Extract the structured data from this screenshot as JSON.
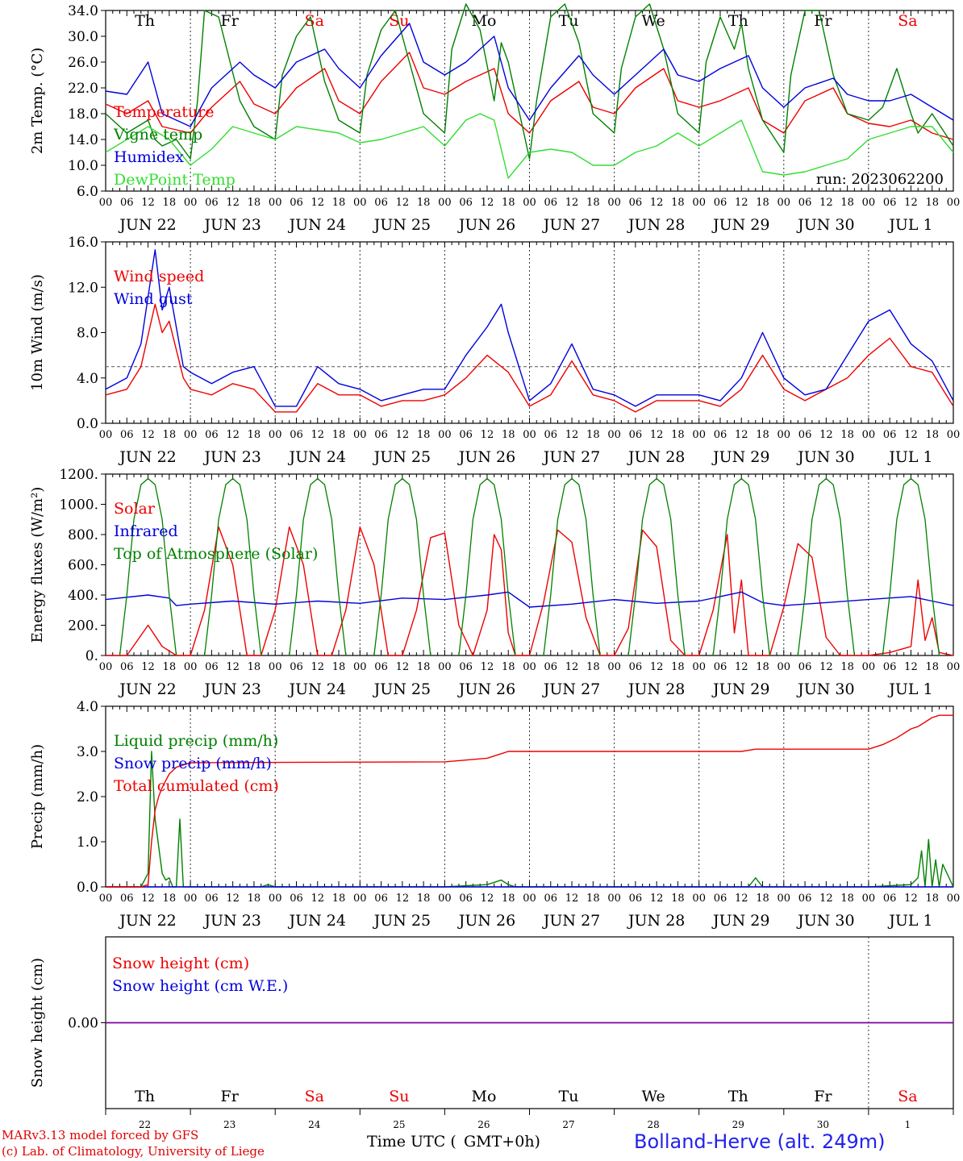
{
  "footer": {
    "credit_line_1": "MARv3.13 model forced by GFS",
    "credit_line_2": "(c) Lab. of Climatology, University of Liege",
    "station": "Bolland-Herve (alt. 249m)",
    "time_axis_label": "Time UTC (",
    "time_zone": "GMT+0h)"
  },
  "colors": {
    "red": "#ee0000",
    "blue": "#0000dd",
    "dark_green": "#008000",
    "light_green": "#33dd33",
    "purple": "#8000a0",
    "weekend": "#ee0000",
    "weekday": "#000000"
  },
  "time_axis": {
    "hour_ticks": [
      "00",
      "06",
      "12",
      "18"
    ],
    "dates": [
      "JUN 22",
      "JUN 23",
      "JUN 24",
      "JUN 25",
      "JUN 26",
      "JUN 27",
      "JUN 28",
      "JUN 29",
      "JUN 30",
      "JUL  1"
    ],
    "day_names": [
      "Th",
      "Fr",
      "Sa",
      "Su",
      "Mo",
      "Tu",
      "We",
      "Th",
      "Fr",
      "Sa"
    ],
    "weekend_days": [
      2,
      3,
      9
    ],
    "day_numbers": [
      "22",
      "23",
      "24",
      "25",
      "26",
      "27",
      "28",
      "29",
      "30",
      "1"
    ]
  },
  "chart_data": [
    {
      "type": "line",
      "ylabel": "2m Temp. (°C)",
      "ylim": [
        6.0,
        34.0
      ],
      "y_ticks": [
        "6.0",
        "10.0",
        "14.0",
        "18.0",
        "22.0",
        "26.0",
        "30.0",
        "34.0"
      ],
      "annotation": "run: 2023062200",
      "x_unit": "hours since JUN 22 00 UTC",
      "series": [
        {
          "name": "Temperature",
          "color": "#ee0000",
          "x": [
            0,
            6,
            12,
            16,
            24,
            30,
            38,
            42,
            48,
            54,
            62,
            66,
            72,
            78,
            86,
            90,
            96,
            102,
            110,
            114,
            120,
            126,
            134,
            138,
            144,
            150,
            158,
            162,
            168,
            174,
            182,
            186,
            192,
            198,
            206,
            210,
            216,
            222,
            228,
            234,
            240
          ],
          "y": [
            19.5,
            18,
            20,
            16,
            15,
            19,
            23,
            19.5,
            18,
            22,
            25,
            20,
            18,
            23,
            27.5,
            22,
            21,
            23,
            25,
            18,
            15,
            20,
            23,
            19,
            18,
            22,
            25,
            20,
            19,
            20,
            22,
            17,
            15,
            20,
            22,
            18,
            16.5,
            16,
            17,
            15,
            14
          ]
        },
        {
          "name": "Vigne temp",
          "color": "#008000",
          "x": [
            0,
            6,
            12,
            14,
            16,
            20,
            24,
            26,
            28,
            32,
            38,
            42,
            48,
            50,
            54,
            58,
            62,
            66,
            72,
            74,
            78,
            82,
            86,
            90,
            96,
            98,
            102,
            106,
            110,
            112,
            114,
            120,
            122,
            126,
            130,
            134,
            138,
            144,
            146,
            150,
            154,
            158,
            162,
            168,
            170,
            174,
            178,
            180,
            182,
            186,
            192,
            194,
            198,
            202,
            206,
            210,
            216,
            220,
            224,
            228,
            230,
            234,
            240
          ],
          "y": [
            18,
            15,
            17,
            14,
            13,
            14,
            11,
            20,
            34,
            33,
            20,
            16,
            14,
            24,
            30,
            33,
            23,
            17,
            15,
            24,
            31,
            34,
            26,
            18,
            15,
            28,
            35,
            31,
            20,
            29,
            26,
            11,
            20,
            33,
            35,
            29,
            18,
            15,
            25,
            33,
            35,
            28,
            18,
            15,
            26,
            33,
            28,
            32,
            25,
            17,
            12,
            24,
            34,
            34,
            24,
            18,
            17,
            19,
            25,
            18,
            15,
            18,
            13
          ]
        },
        {
          "name": "Humidex",
          "color": "#0000dd",
          "x": [
            0,
            6,
            12,
            16,
            24,
            30,
            38,
            42,
            48,
            54,
            62,
            66,
            72,
            78,
            86,
            90,
            96,
            102,
            110,
            114,
            120,
            126,
            134,
            138,
            144,
            150,
            158,
            162,
            168,
            174,
            182,
            186,
            192,
            198,
            206,
            210,
            216,
            222,
            228,
            234,
            240
          ],
          "y": [
            21.5,
            21,
            26,
            18,
            16,
            22,
            26,
            24,
            22,
            26,
            28,
            25,
            22,
            27,
            32,
            26,
            24,
            26,
            30,
            22,
            17,
            22,
            27,
            24,
            21,
            24,
            28,
            24,
            23,
            25,
            27,
            22,
            19,
            22,
            23.5,
            21,
            20,
            20,
            21,
            19,
            17
          ]
        },
        {
          "name": "DewPoint Temp",
          "color": "#33dd33",
          "x": [
            0,
            6,
            12,
            18,
            24,
            30,
            36,
            42,
            48,
            54,
            60,
            66,
            72,
            78,
            84,
            90,
            96,
            102,
            106,
            110,
            114,
            120,
            126,
            132,
            138,
            144,
            150,
            156,
            162,
            168,
            174,
            180,
            186,
            192,
            198,
            204,
            210,
            216,
            222,
            228,
            234,
            240
          ],
          "y": [
            12,
            14,
            16,
            14,
            10,
            12.5,
            16,
            15,
            14,
            16,
            15.5,
            15,
            13.5,
            14,
            15,
            16,
            13,
            17,
            18,
            17,
            8,
            12,
            12.5,
            12,
            10,
            10,
            12,
            13,
            15,
            13,
            15,
            17,
            9,
            8.5,
            9,
            10,
            11,
            14,
            15,
            16,
            16,
            12
          ]
        }
      ]
    },
    {
      "type": "line",
      "ylabel": "10m Wind (m/s)",
      "ylim": [
        0.0,
        16.0
      ],
      "y_ticks": [
        "0.0",
        "4.0",
        "8.0",
        "12.0",
        "16.0"
      ],
      "reference_line": 5.0,
      "series": [
        {
          "name": "Wind speed",
          "color": "#ee0000",
          "x": [
            0,
            6,
            10,
            14,
            16,
            18,
            22,
            24,
            30,
            36,
            42,
            48,
            54,
            60,
            66,
            72,
            78,
            84,
            90,
            96,
            102,
            108,
            114,
            120,
            126,
            132,
            138,
            144,
            150,
            156,
            162,
            168,
            174,
            180,
            186,
            192,
            198,
            204,
            210,
            216,
            222,
            228,
            234,
            240
          ],
          "y": [
            2.5,
            3,
            5,
            10.5,
            8,
            9,
            4,
            3,
            2.5,
            3.5,
            3,
            1,
            1,
            3.5,
            2.5,
            2.5,
            1.5,
            2,
            2,
            2.5,
            4,
            6,
            4.5,
            1.5,
            2.5,
            5.5,
            2.5,
            2,
            1,
            2,
            2,
            2,
            1.5,
            3,
            6,
            3,
            2,
            3,
            4,
            6,
            7.5,
            5,
            4.5,
            1.5
          ]
        },
        {
          "name": "Wind gust",
          "color": "#0000dd",
          "x": [
            0,
            6,
            10,
            14,
            16,
            18,
            22,
            24,
            30,
            36,
            42,
            48,
            54,
            60,
            66,
            72,
            78,
            84,
            90,
            96,
            102,
            108,
            112,
            114,
            120,
            126,
            132,
            138,
            144,
            150,
            156,
            162,
            168,
            174,
            180,
            186,
            192,
            198,
            204,
            210,
            216,
            222,
            228,
            234,
            240
          ],
          "y": [
            3,
            4,
            7,
            15.3,
            10,
            12,
            5,
            4.5,
            3.5,
            4.5,
            5,
            1.5,
            1.5,
            5,
            3.5,
            3,
            2,
            2.5,
            3,
            3,
            6,
            8.5,
            10.5,
            8,
            2,
            3.5,
            7,
            3,
            2.5,
            1.5,
            2.5,
            2.5,
            2.5,
            2,
            4,
            8,
            4,
            2.5,
            3,
            6,
            9,
            10,
            7,
            5.5,
            2
          ]
        }
      ]
    },
    {
      "type": "line",
      "ylabel": "Energy fluxes (W/m²)",
      "ylim": [
        0.0,
        1200.0
      ],
      "y_ticks": [
        "0.",
        "200.",
        "400.",
        "600.",
        "800.",
        "1000.",
        "1200."
      ],
      "series": [
        {
          "name": "Solar",
          "color": "#ee0000",
          "x": [
            0,
            6,
            12,
            16,
            20,
            24,
            28,
            32,
            36,
            40,
            44,
            48,
            52,
            56,
            60,
            64,
            68,
            72,
            76,
            80,
            84,
            88,
            92,
            96,
            100,
            104,
            108,
            110,
            112,
            114,
            116,
            120,
            124,
            128,
            132,
            136,
            140,
            144,
            148,
            152,
            156,
            160,
            164,
            168,
            172,
            176,
            178,
            180,
            182,
            184,
            188,
            192,
            196,
            200,
            204,
            208,
            212,
            216,
            222,
            228,
            230,
            232,
            234,
            236,
            240
          ],
          "y": [
            0,
            0,
            200,
            60,
            0,
            0,
            300,
            850,
            600,
            0,
            0,
            300,
            850,
            600,
            0,
            0,
            300,
            850,
            600,
            0,
            0,
            300,
            780,
            810,
            200,
            0,
            300,
            800,
            700,
            150,
            0,
            0,
            350,
            830,
            750,
            250,
            0,
            0,
            180,
            830,
            720,
            100,
            0,
            0,
            300,
            800,
            150,
            500,
            0,
            0,
            0,
            320,
            740,
            650,
            120,
            0,
            0,
            0,
            20,
            60,
            500,
            100,
            250,
            20,
            0
          ]
        },
        {
          "name": "Infrared",
          "color": "#0000dd",
          "x": [
            0,
            12,
            18,
            20,
            24,
            36,
            48,
            60,
            72,
            84,
            96,
            108,
            114,
            120,
            132,
            144,
            156,
            168,
            180,
            186,
            192,
            204,
            216,
            228,
            234,
            240
          ],
          "y": [
            370,
            400,
            380,
            330,
            340,
            360,
            340,
            360,
            345,
            380,
            370,
            400,
            420,
            320,
            340,
            370,
            345,
            360,
            420,
            350,
            330,
            350,
            370,
            390,
            360,
            330
          ]
        },
        {
          "name": "Top of Atmosphere (Solar)",
          "color": "#008000",
          "x": [
            4,
            6,
            8,
            10,
            12,
            14,
            16,
            18,
            20
          ],
          "y": [
            0,
            400,
            900,
            1130,
            1170,
            1130,
            900,
            400,
            0
          ],
          "repeat_daily": true
        }
      ]
    },
    {
      "type": "line",
      "ylabel": "Precip (mm/h)",
      "ylim": [
        0.0,
        4.0
      ],
      "y_ticks": [
        "0.0",
        "1.0",
        "2.0",
        "3.0",
        "4.0"
      ],
      "series": [
        {
          "name": "Liquid precip (mm/h)",
          "color": "#008000",
          "x": [
            0,
            10,
            12,
            13,
            14,
            15,
            16,
            17,
            18,
            19,
            20,
            21,
            22,
            24,
            44,
            46,
            48,
            96,
            108,
            112,
            114,
            116,
            120,
            168,
            182,
            184,
            186,
            216,
            228,
            230,
            231,
            232,
            233,
            234,
            235,
            236,
            237,
            240
          ],
          "y": [
            0,
            0,
            0.3,
            3.0,
            1.5,
            0.9,
            0.3,
            0.15,
            0.2,
            0,
            0,
            1.5,
            0,
            0,
            0,
            0.05,
            0,
            0,
            0.05,
            0.15,
            0.05,
            0,
            0,
            0,
            0,
            0.2,
            0,
            0,
            0.05,
            0.2,
            0.8,
            0,
            1.05,
            0,
            0.6,
            0,
            0.5,
            0
          ]
        },
        {
          "name": "Snow precip (mm/h)",
          "color": "#0000dd",
          "x": [
            0,
            240
          ],
          "y": [
            0,
            0
          ]
        },
        {
          "name": "Total cumulated (cm)",
          "color": "#ee0000",
          "x": [
            0,
            10,
            12,
            13,
            14,
            15,
            16,
            17,
            18,
            20,
            22,
            24,
            60,
            96,
            108,
            112,
            114,
            120,
            156,
            180,
            184,
            216,
            220,
            224,
            228,
            230,
            232,
            234,
            236,
            240
          ],
          "y": [
            0,
            0,
            0.05,
            1.0,
            1.7,
            2.0,
            2.2,
            2.35,
            2.5,
            2.65,
            2.7,
            2.75,
            2.76,
            2.77,
            2.85,
            2.95,
            3.0,
            3.0,
            3.0,
            3.0,
            3.05,
            3.05,
            3.15,
            3.3,
            3.5,
            3.55,
            3.65,
            3.75,
            3.8,
            3.8
          ]
        }
      ]
    },
    {
      "type": "line",
      "ylabel": "Snow height (cm)",
      "ylim": [
        -1.0,
        1.0
      ],
      "y_ticks": [
        "0.00"
      ],
      "series": [
        {
          "name": "Snow height (cm)",
          "color": "#ee0000",
          "x": [
            0,
            240
          ],
          "y": [
            0,
            0
          ]
        },
        {
          "name": "Snow height (cm W.E.)",
          "color": "#0000dd",
          "x": [
            0,
            240
          ],
          "y": [
            0,
            0
          ]
        }
      ]
    }
  ]
}
